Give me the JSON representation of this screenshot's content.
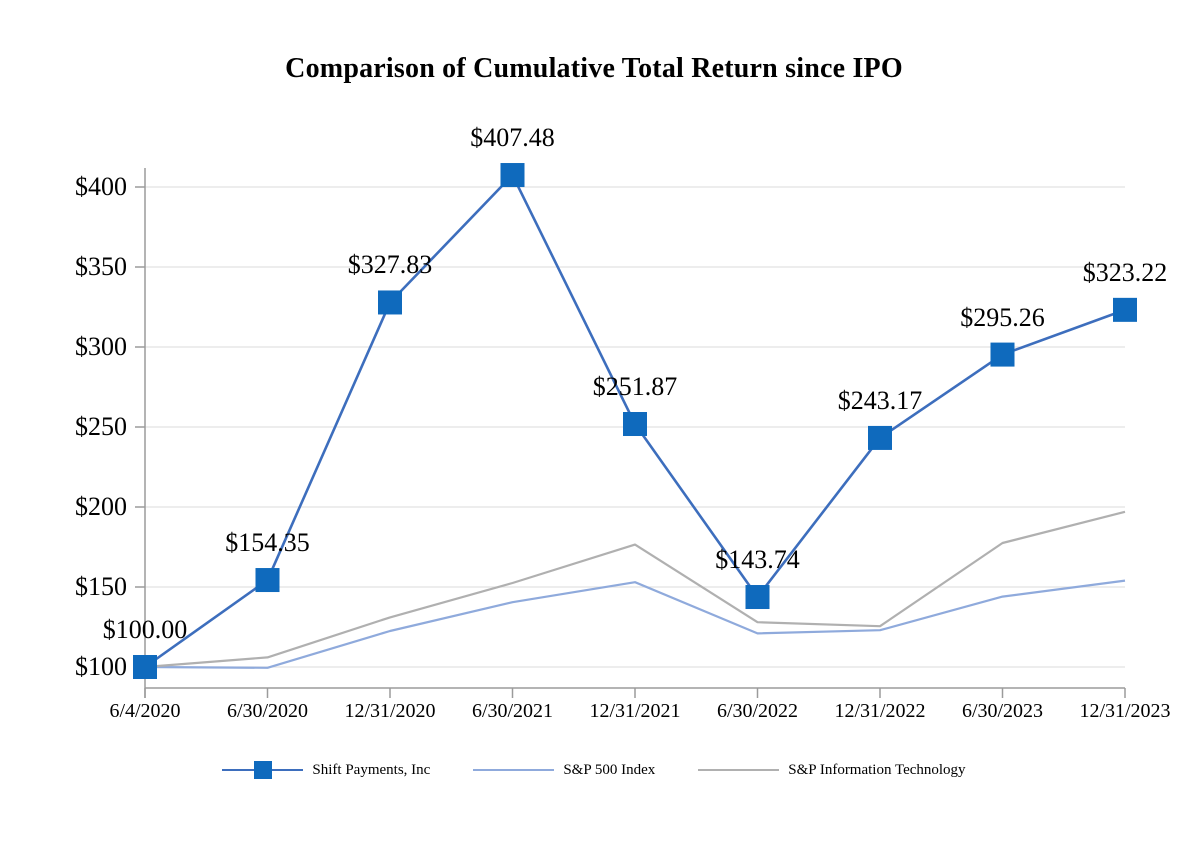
{
  "chart_data": {
    "type": "line",
    "title": "Comparison of Cumulative Total Return since IPO",
    "x_labels": [
      "6/4/2020",
      "6/30/2020",
      "12/31/2020",
      "6/30/2021",
      "12/31/2021",
      "6/30/2022",
      "12/31/2022",
      "6/30/2023",
      "12/31/2023"
    ],
    "y_ticks": [
      100,
      150,
      200,
      250,
      300,
      350,
      400
    ],
    "y_tick_labels": [
      "$100",
      "$150",
      "$200",
      "$250",
      "$300",
      "$350",
      "$400"
    ],
    "ylim": [
      87,
      412
    ],
    "grid": "horizontal",
    "legend_position": "bottom",
    "colors": {
      "gridline": "#e2e2e2",
      "axis": "#9b9b9b",
      "text": "#000000"
    },
    "series": [
      {
        "name": "Shift Payments, Inc",
        "color": "#3d6ebd",
        "marker": "square",
        "marker_color": "#0f6abd",
        "values": [
          100.0,
          154.35,
          327.83,
          407.48,
          251.87,
          143.74,
          243.17,
          295.26,
          323.22
        ],
        "data_labels": [
          "$100.00",
          "$154.35",
          "$327.83",
          "$407.48",
          "$251.87",
          "$143.74",
          "$243.17",
          "$295.26",
          "$323.22"
        ]
      },
      {
        "name": "S&P 500 Index",
        "color": "#8faadc",
        "marker": "none",
        "values": [
          100,
          99.5,
          122.5,
          140.5,
          153,
          121,
          123,
          144,
          154
        ]
      },
      {
        "name": "S&P Information Technology",
        "color": "#b0b0b0",
        "marker": "none",
        "values": [
          100,
          106,
          131,
          152.5,
          176.5,
          128,
          125.5,
          177.5,
          197
        ]
      }
    ]
  }
}
